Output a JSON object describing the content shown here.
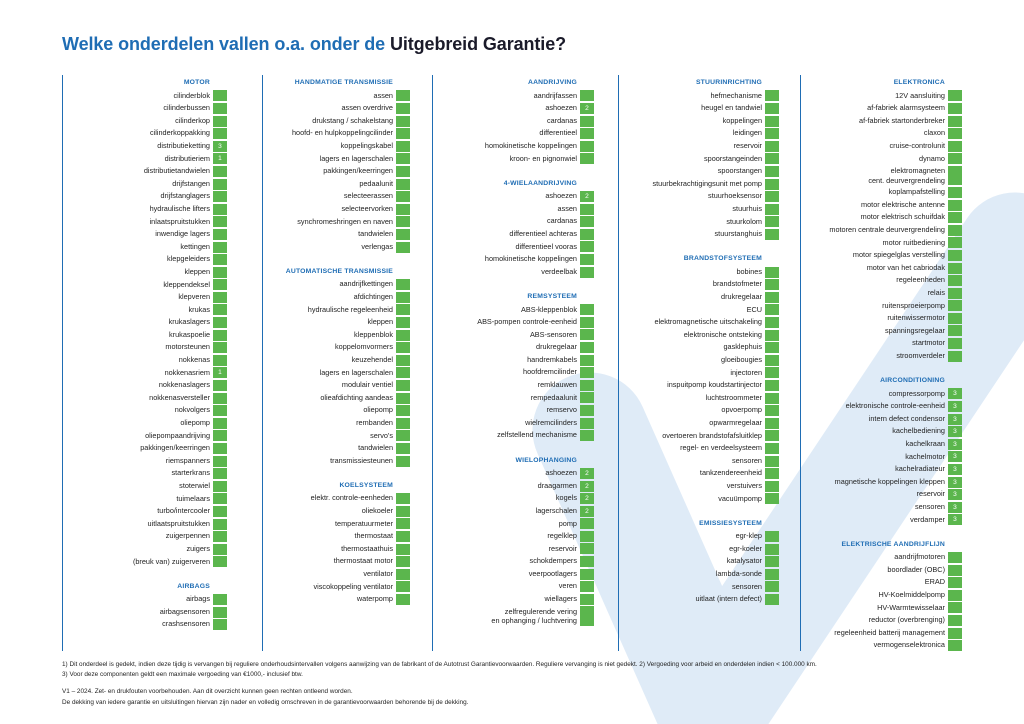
{
  "title": {
    "part1": "Welke onderdelen vallen o.a. onder de ",
    "part2": "Uitgebreid Garantie?"
  },
  "colors": {
    "accent": "#1f6db4",
    "title_dark": "#1b1b2a",
    "box": "#5bb64d",
    "check": "#dfebf7",
    "text": "#1f1f1f"
  },
  "columns": [
    {
      "sections": [
        {
          "header": "MOTOR",
          "items": [
            {
              "label": "cilinderblok"
            },
            {
              "label": "cilinderbussen"
            },
            {
              "label": "cilinderkop"
            },
            {
              "label": "cilinderkoppakking"
            },
            {
              "label": "distributieketting",
              "note": "3"
            },
            {
              "label": "distributieriem",
              "note": "1"
            },
            {
              "label": "distributietandwielen"
            },
            {
              "label": "drijfstangen"
            },
            {
              "label": "drijfstanglagers"
            },
            {
              "label": "hydraulische lifters"
            },
            {
              "label": "inlaatspruitstukken"
            },
            {
              "label": "inwendige lagers"
            },
            {
              "label": "kettingen"
            },
            {
              "label": "klepgeleiders"
            },
            {
              "label": "kleppen"
            },
            {
              "label": "kleppendeksel"
            },
            {
              "label": "klepveren"
            },
            {
              "label": "krukas"
            },
            {
              "label": "krukaslagers"
            },
            {
              "label": "krukaspoelie"
            },
            {
              "label": "motorsteunen"
            },
            {
              "label": "nokkenas"
            },
            {
              "label": "nokkenasriem",
              "note": "1"
            },
            {
              "label": "nokkenaslagers"
            },
            {
              "label": "nokkenasversteller"
            },
            {
              "label": "nokvolgers"
            },
            {
              "label": "oliepomp"
            },
            {
              "label": "oliepompaandrijving"
            },
            {
              "label": "pakkingen/keerringen"
            },
            {
              "label": "riemspanners"
            },
            {
              "label": "starterkrans"
            },
            {
              "label": "stoterwiel"
            },
            {
              "label": "tuimelaars"
            },
            {
              "label": "turbo/intercooler"
            },
            {
              "label": "uitlaatspruitstukken"
            },
            {
              "label": "zuigerpennen"
            },
            {
              "label": "zuigers"
            },
            {
              "label": "(breuk van) zuigerveren"
            }
          ]
        },
        {
          "header": "AIRBAGS",
          "items": [
            {
              "label": "airbags"
            },
            {
              "label": "airbagsensoren"
            },
            {
              "label": "crashsensoren"
            }
          ]
        }
      ]
    },
    {
      "sections": [
        {
          "header": "HANDMATIGE TRANSMISSIE",
          "items": [
            {
              "label": "assen"
            },
            {
              "label": "assen overdrive"
            },
            {
              "label": "drukstang / schakelstang"
            },
            {
              "label": "hoofd- en hulpkoppelingcilinder"
            },
            {
              "label": "koppelingskabel"
            },
            {
              "label": "lagers en lagerschalen"
            },
            {
              "label": "pakkingen/keerringen"
            },
            {
              "label": "pedaalunit"
            },
            {
              "label": "selecteerassen"
            },
            {
              "label": "selecteervorken"
            },
            {
              "label": "synchromeshringen en naven"
            },
            {
              "label": "tandwielen"
            },
            {
              "label": "verlengas"
            }
          ]
        },
        {
          "header": "AUTOMATISCHE TRANSMISSIE",
          "items": [
            {
              "label": "aandrijfkettingen"
            },
            {
              "label": "afdichtingen"
            },
            {
              "label": "hydraulische regeleenheid"
            },
            {
              "label": "kleppen"
            },
            {
              "label": "kleppenblok"
            },
            {
              "label": "koppelomvormers"
            },
            {
              "label": "keuzehendel"
            },
            {
              "label": "lagers en lagerschalen"
            },
            {
              "label": "modulair ventiel"
            },
            {
              "label": "olieafdichting aandeas"
            },
            {
              "label": "oliepomp"
            },
            {
              "label": "rembanden"
            },
            {
              "label": "servo's"
            },
            {
              "label": "tandwielen"
            },
            {
              "label": "transmissiesteunen"
            }
          ]
        },
        {
          "header": "KOELSYSTEEM",
          "items": [
            {
              "label": "elektr. controle-eenheden"
            },
            {
              "label": "oliekoeler"
            },
            {
              "label": "temperatuurmeter"
            },
            {
              "label": "thermostaat"
            },
            {
              "label": "thermostaathuis"
            },
            {
              "label": "thermostaat motor"
            },
            {
              "label": "ventilator"
            },
            {
              "label": "viscokoppeling ventilator"
            },
            {
              "label": "waterpomp"
            }
          ]
        }
      ]
    },
    {
      "sections": [
        {
          "header": "AANDRIJVING",
          "items": [
            {
              "label": "aandrijfassen"
            },
            {
              "label": "ashoezen",
              "note": "2"
            },
            {
              "label": "cardanas"
            },
            {
              "label": "differentieel"
            },
            {
              "label": "homokinetische koppelingen"
            },
            {
              "label": "kroon- en pignonwiel"
            }
          ]
        },
        {
          "header": "4-WIELAANDRIJVING",
          "items": [
            {
              "label": "ashoezen",
              "note": "2"
            },
            {
              "label": "assen"
            },
            {
              "label": "cardanas"
            },
            {
              "label": "differentieel achteras"
            },
            {
              "label": "differentieel vooras"
            },
            {
              "label": "homokinetische koppelingen"
            },
            {
              "label": "verdeelbak"
            }
          ]
        },
        {
          "header": "REMSYSTEEM",
          "items": [
            {
              "label": "ABS-kleppenblok"
            },
            {
              "label": "ABS-pompen controle-eenheid"
            },
            {
              "label": "ABS-sensoren"
            },
            {
              "label": "drukregelaar"
            },
            {
              "label": "handremkabels"
            },
            {
              "label": "hoofdremcilinder"
            },
            {
              "label": "remklauwen"
            },
            {
              "label": "rempedaalunit"
            },
            {
              "label": "remservo"
            },
            {
              "label": "wielremcilinders"
            },
            {
              "label": "zelfstellend mechanisme"
            }
          ]
        },
        {
          "header": "WIELOPHANGING",
          "items": [
            {
              "label": "ashoezen",
              "note": "2"
            },
            {
              "label": "draagarmen",
              "note": "2"
            },
            {
              "label": "kogels",
              "note": "2"
            },
            {
              "label": "lagerschalen",
              "note": "2"
            },
            {
              "label": "pomp"
            },
            {
              "label": "regelklep"
            },
            {
              "label": "reservoir"
            },
            {
              "label": "schokdempers"
            },
            {
              "label": "veerpootlagers"
            },
            {
              "label": "veren"
            },
            {
              "label": "wiellagers"
            },
            {
              "label": "zelfregulerende vering",
              "label2": "en ophanging / luchtvering"
            }
          ]
        }
      ]
    },
    {
      "sections": [
        {
          "header": "STUURINRICHTING",
          "items": [
            {
              "label": "hefmechanisme"
            },
            {
              "label": "heugel en tandwiel"
            },
            {
              "label": "koppelingen"
            },
            {
              "label": "leidingen"
            },
            {
              "label": "reservoir"
            },
            {
              "label": "spoorstangeinden"
            },
            {
              "label": "spoorstangen"
            },
            {
              "label": "stuurbekrachtigingsunit met pomp"
            },
            {
              "label": "stuurhoeksensor"
            },
            {
              "label": "stuurhuis"
            },
            {
              "label": "stuurkolom"
            },
            {
              "label": "stuurstanghuis"
            }
          ]
        },
        {
          "header": "BRANDSTOFSYSTEEM",
          "items": [
            {
              "label": "bobines"
            },
            {
              "label": "brandstofmeter"
            },
            {
              "label": "drukregelaar"
            },
            {
              "label": "ECU"
            },
            {
              "label": "elektromagnetische uitschakeling"
            },
            {
              "label": "elektronische ontsteking"
            },
            {
              "label": "gasklephuis"
            },
            {
              "label": "gloeibougies"
            },
            {
              "label": "injectoren"
            },
            {
              "label": "inspuitpomp koudstartinjector"
            },
            {
              "label": "luchtstroommeter"
            },
            {
              "label": "opvoerpomp"
            },
            {
              "label": "opwarmregelaar"
            },
            {
              "label": "overtoeren brandstofafsluitklep"
            },
            {
              "label": "regel- en verdeelsysteem"
            },
            {
              "label": "sensoren"
            },
            {
              "label": "tankzendereenheid"
            },
            {
              "label": "verstuivers"
            },
            {
              "label": "vacuümpomp"
            }
          ]
        },
        {
          "header": "EMISSIESYSTEEM",
          "items": [
            {
              "label": "egr-klep"
            },
            {
              "label": "egr-koeler"
            },
            {
              "label": "katalysator"
            },
            {
              "label": "lambda-sonde"
            },
            {
              "label": "sensoren"
            },
            {
              "label": "uitlaat (intern defect)"
            }
          ]
        }
      ]
    },
    {
      "sections": [
        {
          "header": "ELEKTRONICA",
          "items": [
            {
              "label": "12V aansluiting"
            },
            {
              "label": "af-fabriek alarmsysteem"
            },
            {
              "label": "af-fabriek startonderbreker"
            },
            {
              "label": "claxon"
            },
            {
              "label": "cruise-controlunit"
            },
            {
              "label": "dynamo"
            },
            {
              "label": "elektromagneten",
              "label2": "cent. deurvergrendeling"
            },
            {
              "label": "koplampafstelling"
            },
            {
              "label": "motor elektrische antenne"
            },
            {
              "label": "motor elektrisch schuifdak"
            },
            {
              "label": "motoren centrale deurvergrendeling"
            },
            {
              "label": "motor ruitbediening"
            },
            {
              "label": "motor spiegelglas verstelling"
            },
            {
              "label": "motor van het cabriodak"
            },
            {
              "label": "regeleenheden"
            },
            {
              "label": "relais"
            },
            {
              "label": "ruitensproeierpomp"
            },
            {
              "label": "ruitenwissermotor"
            },
            {
              "label": "spanningsregelaar"
            },
            {
              "label": "startmotor"
            },
            {
              "label": "stroomverdeler"
            }
          ]
        },
        {
          "header": "AIRCONDITIONING",
          "items": [
            {
              "label": "compressorpomp",
              "note": "3"
            },
            {
              "label": "elektronische controle-eenheid",
              "note": "3"
            },
            {
              "label": "intern defect condensor",
              "note": "3"
            },
            {
              "label": "kachelbediening",
              "note": "3"
            },
            {
              "label": "kachelkraan",
              "note": "3"
            },
            {
              "label": "kachelmotor",
              "note": "3"
            },
            {
              "label": "kachelradiateur",
              "note": "3"
            },
            {
              "label": "magnetische koppelingen kleppen",
              "note": "3"
            },
            {
              "label": "reservoir",
              "note": "3"
            },
            {
              "label": "sensoren",
              "note": "3"
            },
            {
              "label": "verdamper",
              "note": "3"
            }
          ]
        },
        {
          "header": "ELEKTRISCHE AANDRIJFLIJN",
          "items": [
            {
              "label": "aandrijfmotoren"
            },
            {
              "label": "boordlader (OBC)"
            },
            {
              "label": "ERAD"
            },
            {
              "label": "HV-Koelmiddelpomp"
            },
            {
              "label": "HV-Warmtewisselaar"
            },
            {
              "label": "reductor (overbrenging)"
            },
            {
              "label": "regeleenheid batterij management"
            },
            {
              "label": "vermogenselektronica"
            }
          ]
        }
      ]
    }
  ],
  "footnotes": {
    "line1": "1) Dit onderdeel is gedekt, indien deze tijdig is vervangen bij reguliere onderhoudsintervallen volgens aanwijzing van de fabrikant of de Autotrust Garantievoorwaarden. Reguliere vervanging is niet gedekt. 2) Vergoeding voor arbeid en onderdelen indien < 100.000 km.",
    "line2": "3) Voor deze componenten geldt een maximale vergoeding van €1000,- inclusief btw."
  },
  "disclaimer": {
    "line1": "V1 – 2024. Zet- en drukfouten voorbehouden. Aan dit overzicht kunnen geen rechten ontleend worden.",
    "line2": "De dekking van iedere garantie en uitsluitingen hiervan zijn nader en volledig omschreven in de garantievoorwaarden behorende bij de dekking."
  }
}
